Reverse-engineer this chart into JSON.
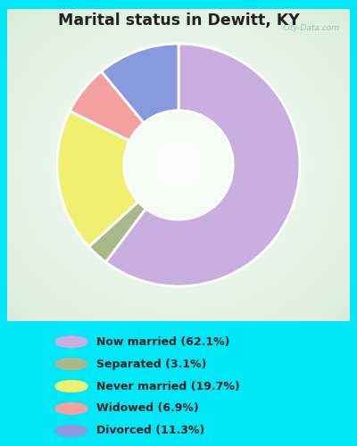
{
  "title": "Marital status in Dewitt, KY",
  "slices": [
    62.1,
    3.1,
    19.7,
    6.9,
    11.3
  ],
  "labels": [
    "Now married (62.1%)",
    "Separated (3.1%)",
    "Never married (19.7%)",
    "Widowed (6.9%)",
    "Divorced (11.3%)"
  ],
  "colors": [
    "#c9aee0",
    "#a8b888",
    "#f0f070",
    "#f4a0a0",
    "#8899dd"
  ],
  "bg_cyan": "#00e8f8",
  "watermark": "City-Data.com",
  "donut_width": 0.55,
  "start_angle": 90
}
